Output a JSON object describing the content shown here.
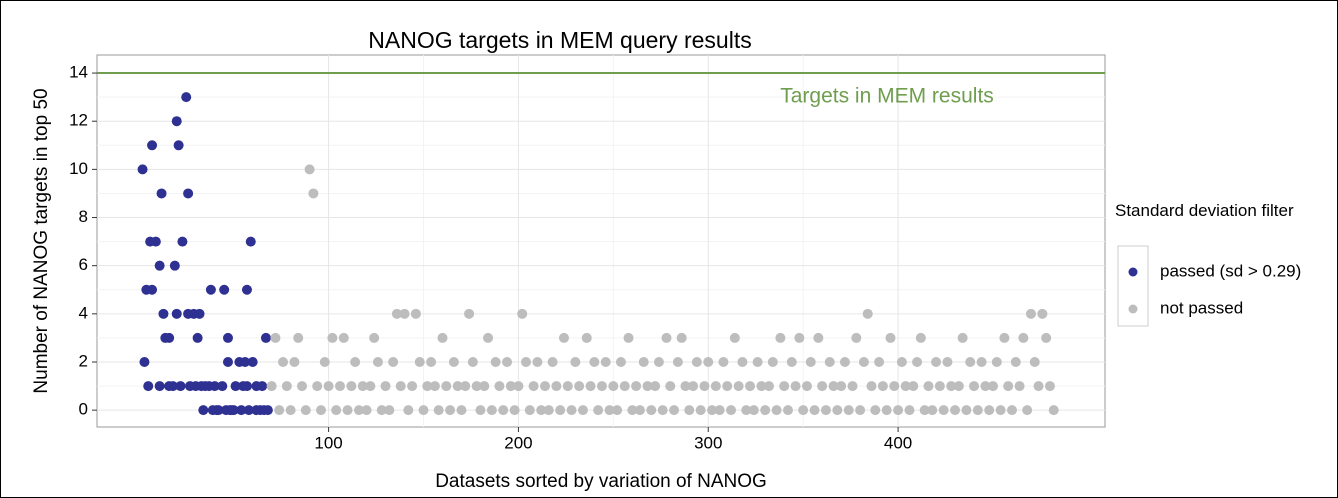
{
  "chart_data": {
    "type": "scatter",
    "title": "NANOG targets in MEM query results",
    "xlabel": "Datasets sorted by variation of NANOG",
    "ylabel": "Number of NANOG targets in top 50",
    "xlim": [
      -22,
      509
    ],
    "ylim": [
      -0.7,
      14.75
    ],
    "xticks": [
      100,
      200,
      300,
      400
    ],
    "yticks": [
      0,
      2,
      4,
      6,
      8,
      10,
      12,
      14
    ],
    "grid": true,
    "legend_title": "Standard deviation filter",
    "legend_position": "right",
    "hline": {
      "value": 14,
      "label": "Targets in MEM results",
      "color": "#6f9e4f"
    },
    "series": [
      {
        "name": "passed (sd > 0.29)",
        "color": "#2e3192",
        "x": [
          2,
          3,
          4,
          5,
          6,
          7,
          7,
          9,
          11,
          11,
          12,
          13,
          14,
          16,
          16,
          18,
          19,
          20,
          20,
          21,
          22,
          23,
          25,
          26,
          26,
          27,
          29,
          30,
          31,
          32,
          33,
          34,
          35,
          37,
          38,
          39,
          40,
          41,
          42,
          44,
          45,
          46,
          47,
          47,
          48,
          49,
          50,
          51,
          53,
          54,
          55,
          56,
          57,
          57,
          58,
          59,
          60,
          62,
          62,
          64,
          65,
          66,
          67,
          68
        ],
        "values": [
          10,
          2,
          5,
          1,
          7,
          11,
          5,
          7,
          1,
          6,
          9,
          4,
          3,
          1,
          3,
          1,
          6,
          12,
          4,
          11,
          1,
          7,
          13,
          9,
          4,
          1,
          4,
          1,
          3,
          4,
          1,
          0,
          1,
          1,
          5,
          0,
          1,
          0,
          0,
          1,
          5,
          0,
          3,
          2,
          0,
          0,
          0,
          1,
          2,
          0,
          1,
          2,
          5,
          1,
          0,
          7,
          2,
          0,
          1,
          0,
          1,
          0,
          3,
          0
        ]
      },
      {
        "name": "not passed",
        "color": "#bdbdbd",
        "x": [
          70,
          72,
          74,
          76,
          78,
          80,
          82,
          84,
          86,
          88,
          90,
          92,
          94,
          96,
          98,
          100,
          102,
          104,
          106,
          108,
          110,
          112,
          114,
          116,
          118,
          120,
          122,
          124,
          126,
          128,
          130,
          132,
          134,
          136,
          138,
          140,
          142,
          144,
          146,
          148,
          150,
          152,
          154,
          156,
          158,
          160,
          162,
          164,
          166,
          168,
          170,
          172,
          174,
          176,
          178,
          180,
          182,
          184,
          186,
          188,
          190,
          192,
          194,
          196,
          198,
          200,
          202,
          204,
          206,
          208,
          210,
          212,
          214,
          216,
          218,
          220,
          222,
          224,
          226,
          228,
          230,
          232,
          234,
          236,
          238,
          240,
          242,
          244,
          246,
          248,
          250,
          252,
          254,
          256,
          258,
          260,
          262,
          264,
          266,
          268,
          270,
          272,
          274,
          276,
          278,
          280,
          282,
          284,
          286,
          288,
          290,
          292,
          294,
          296,
          298,
          300,
          302,
          304,
          306,
          308,
          310,
          312,
          314,
          316,
          318,
          320,
          322,
          324,
          326,
          328,
          330,
          332,
          334,
          336,
          338,
          340,
          342,
          344,
          346,
          348,
          350,
          352,
          354,
          356,
          358,
          360,
          362,
          364,
          366,
          368,
          370,
          372,
          374,
          376,
          378,
          380,
          382,
          384,
          386,
          388,
          390,
          392,
          394,
          396,
          398,
          400,
          402,
          404,
          406,
          408,
          410,
          412,
          414,
          416,
          418,
          420,
          422,
          424,
          426,
          428,
          430,
          432,
          434,
          436,
          438,
          440,
          442,
          444,
          446,
          448,
          450,
          452,
          454,
          456,
          458,
          460,
          462,
          464,
          466,
          468,
          470,
          472,
          474,
          476,
          478,
          480,
          482
        ],
        "values": [
          1,
          3,
          0,
          2,
          1,
          0,
          2,
          3,
          1,
          0,
          10,
          9,
          1,
          0,
          2,
          1,
          3,
          0,
          1,
          3,
          0,
          1,
          2,
          0,
          1,
          0,
          1,
          3,
          2,
          0,
          1,
          0,
          2,
          4,
          1,
          4,
          0,
          1,
          4,
          2,
          0,
          1,
          2,
          1,
          0,
          3,
          1,
          0,
          2,
          1,
          0,
          1,
          4,
          2,
          1,
          0,
          1,
          3,
          0,
          2,
          1,
          0,
          2,
          1,
          0,
          1,
          4,
          2,
          0,
          1,
          2,
          0,
          1,
          0,
          2,
          1,
          0,
          3,
          1,
          0,
          2,
          1,
          0,
          3,
          1,
          2,
          0,
          1,
          2,
          0,
          1,
          0,
          2,
          1,
          3,
          0,
          1,
          0,
          2,
          1,
          0,
          1,
          2,
          0,
          3,
          1,
          0,
          2,
          3,
          1,
          0,
          1,
          2,
          0,
          1,
          2,
          0,
          1,
          0,
          2,
          1,
          0,
          3,
          1,
          2,
          0,
          1,
          0,
          2,
          1,
          0,
          1,
          2,
          0,
          3,
          1,
          0,
          2,
          1,
          3,
          0,
          1,
          2,
          0,
          3,
          1,
          0,
          2,
          1,
          0,
          1,
          2,
          0,
          1,
          3,
          0,
          2,
          4,
          1,
          0,
          2,
          1,
          0,
          3,
          1,
          0,
          2,
          1,
          0,
          1,
          2,
          3,
          0,
          1,
          0,
          2,
          1,
          0,
          2,
          1,
          0,
          1,
          3,
          0,
          2,
          1,
          0,
          2,
          1,
          0,
          1,
          2,
          0,
          3,
          1,
          0,
          2,
          1,
          3,
          0,
          4,
          2,
          1,
          4,
          3,
          1,
          0
        ]
      }
    ]
  }
}
